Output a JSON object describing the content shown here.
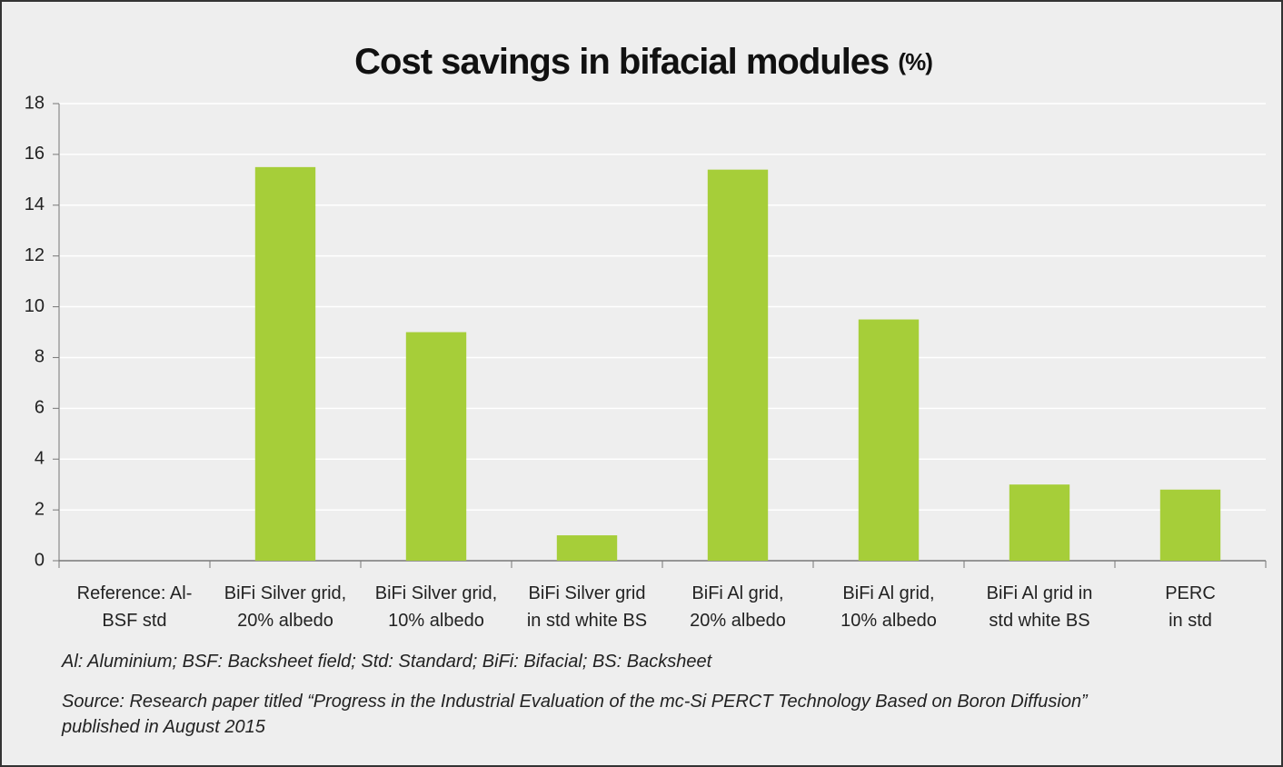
{
  "chart_data": {
    "type": "bar",
    "title": "Cost savings in bifacial modules",
    "title_unit": "(%)",
    "categories": [
      "Reference: Al-\nBSF std",
      "BiFi Silver grid,\n20% albedo",
      "BiFi Silver grid,\n10% albedo",
      "BiFi Silver grid\nin std white BS",
      "BiFi Al grid,\n20% albedo",
      "BiFi Al grid,\n10% albedo",
      "BiFi Al grid in\nstd  white BS",
      "PERC\nin std"
    ],
    "values": [
      0,
      15.5,
      9,
      1,
      15.4,
      9.5,
      3,
      2.8
    ],
    "color": "#a6ce39",
    "ylim": [
      0,
      18
    ],
    "yticks": [
      0,
      2,
      4,
      6,
      8,
      10,
      12,
      14,
      16,
      18
    ],
    "grid": true,
    "notes": [
      "Al: Aluminium; BSF: Backsheet field; Std: Standard; BiFi: Bifacial; BS: Backsheet",
      "Source: Research paper titled “Progress in the Industrial Evaluation of the mc-Si PERCT Technology Based on Boron Diffusion”\npublished in August 2015"
    ]
  }
}
